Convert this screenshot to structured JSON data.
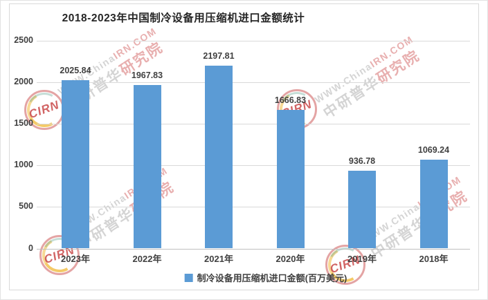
{
  "chart_data": {
    "type": "bar",
    "title": "2018-2023年中国制冷设备用压缩机进口金额统计",
    "categories": [
      "2023年",
      "2022年",
      "2021年",
      "2020年",
      "2019年",
      "2018年"
    ],
    "values": [
      2025.84,
      1967.83,
      2197.81,
      1666.83,
      936.78,
      1069.24
    ],
    "value_labels": [
      "2025.84",
      "1967.83",
      "2197.81",
      "1666.83",
      "936.78",
      "1069.24"
    ],
    "ylim": [
      0,
      2500
    ],
    "yticks": [
      0,
      500,
      1000,
      1500,
      2000,
      2500
    ],
    "grid": true,
    "legend_label": "制冷设备用压缩机进口金额(百万美元)",
    "legend_position": "bottom",
    "bar_color": "#5B9BD5"
  },
  "watermark": {
    "site_text_gray": "WWW.China",
    "site_text_red": "IRN.COM",
    "brand_text_gray": "中研普华",
    "brand_text_red": "研究院",
    "logo_text": "CIRN"
  },
  "colors": {
    "bar": "#5B9BD5",
    "grid": "#D9D9D9",
    "axis_line": "#BFBFBF",
    "text": "#404040",
    "title": "#262626",
    "border": "#D9D9D9",
    "watermark_gray": "#B2B2B2",
    "watermark_red": "#D66E6E"
  }
}
